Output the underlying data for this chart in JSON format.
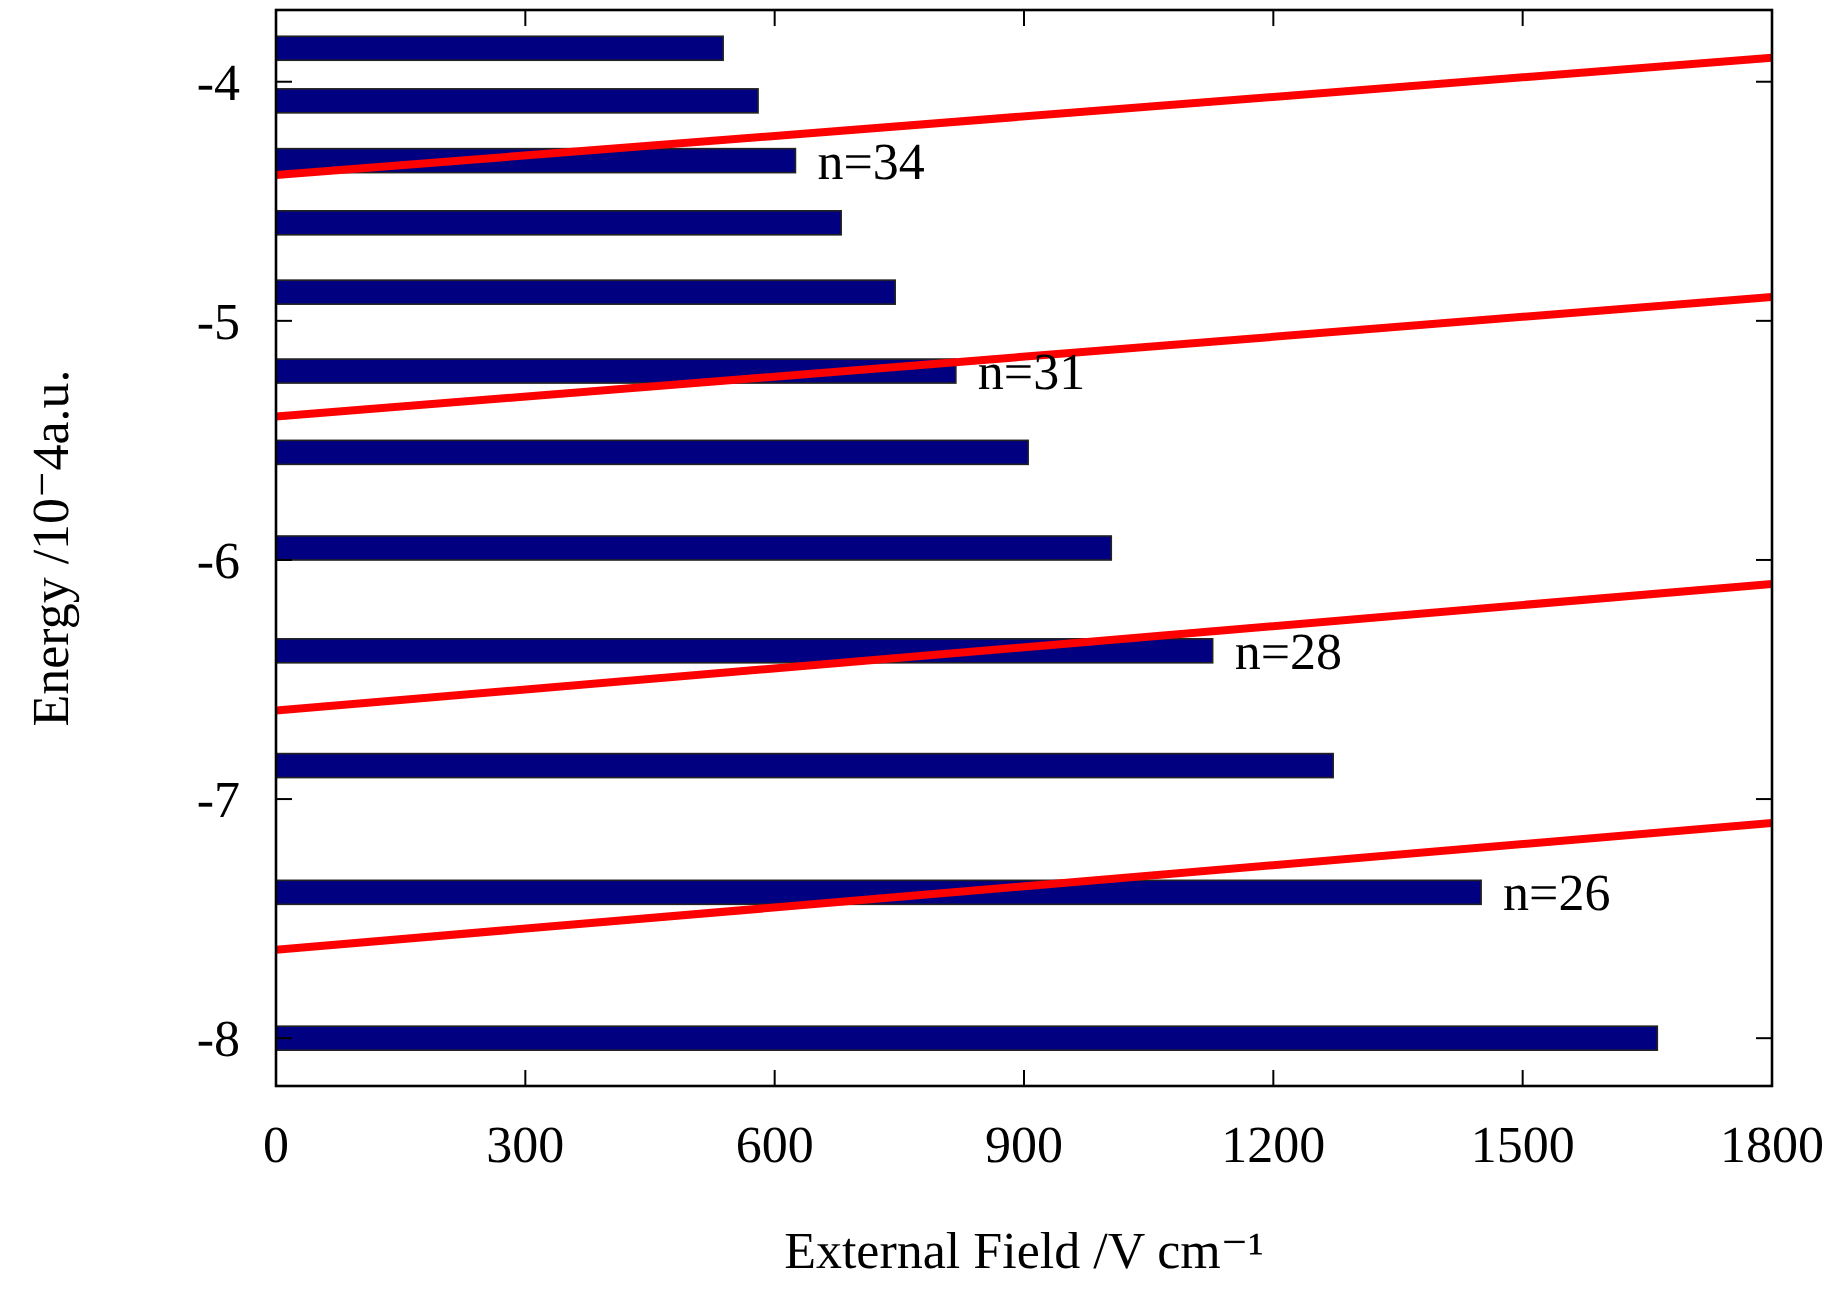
{
  "chart_data": {
    "type": "bar",
    "orientation": "horizontal",
    "xlabel": "External Field /V cm⁻¹",
    "ylabel": "Energy /10⁻4a.u.",
    "xlim": [
      0,
      1800
    ],
    "xticks": [
      0,
      300,
      600,
      900,
      1200,
      1500,
      1800
    ],
    "ylim": [
      -8.2,
      -3.7
    ],
    "yticks": [
      -4,
      -5,
      -6,
      -7,
      -8
    ],
    "grid": false,
    "series": [
      {
        "color": "#000080",
        "x": [
          -3.86,
          -4.08,
          -4.33,
          -4.59,
          -4.88,
          -5.21,
          -5.55,
          -5.95,
          -6.38,
          -6.86,
          -7.39,
          -8.0
        ],
        "values": [
          538,
          580,
          625,
          680,
          745,
          818,
          905,
          1005,
          1127,
          1272,
          1450,
          1662
        ]
      },
      {
        "type": "line",
        "color": "#ff0000",
        "x": [
          -4.39,
          -3.9
        ],
        "values": [
          0,
          1800
        ]
      },
      {
        "type": "line",
        "color": "#ff0000",
        "x": [
          -5.4,
          -4.9
        ],
        "values": [
          0,
          1800
        ]
      },
      {
        "type": "line",
        "color": "#ff0000",
        "x": [
          -6.63,
          -6.1
        ],
        "values": [
          0,
          1800
        ]
      },
      {
        "type": "line",
        "color": "#ff0000",
        "x": [
          -7.63,
          -7.1
        ],
        "values": [
          0,
          1800
        ]
      }
    ],
    "annotations": [
      "n=34",
      "n=31",
      "n=28",
      "n=26"
    ]
  }
}
